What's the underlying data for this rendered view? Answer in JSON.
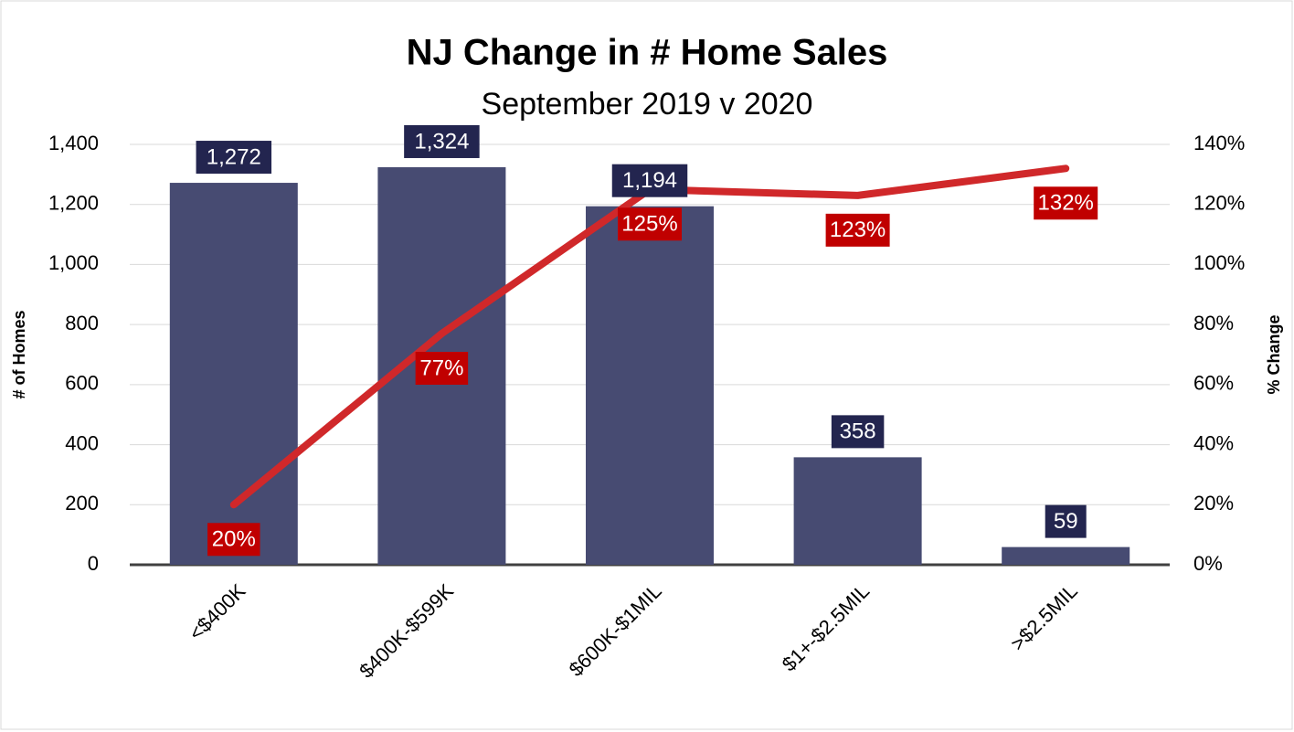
{
  "chart_data": {
    "type": "bar_line",
    "title": "NJ Change in # Home Sales",
    "subtitle": "September 2019 v 2020",
    "y_label": "# of Homes",
    "y2_label": "% Change",
    "categories": [
      "<$400K",
      "$400K-$599K",
      "$600K-$1MIL",
      "$1+-$2.5MIL",
      ">$2.5MIL"
    ],
    "series": [
      {
        "type": "bar",
        "color": "#474b72",
        "label_color": "#23254f",
        "values": [
          1272,
          1324,
          1194,
          358,
          59
        ],
        "value_labels": [
          "1,272",
          "1,324",
          "1,194",
          "358",
          "59"
        ]
      },
      {
        "type": "line",
        "axis": "y2",
        "color": "#d0282a",
        "label_color": "#c00000",
        "values": [
          20,
          77,
          125,
          123,
          132
        ],
        "value_labels": [
          "20%",
          "77%",
          "125%",
          "123%",
          "132%"
        ]
      }
    ],
    "ylim": [
      0,
      1400
    ],
    "yticks": [
      0,
      200,
      400,
      600,
      800,
      {
        "value": 1000,
        "label": "1,000"
      },
      {
        "value": 1200,
        "label": "1,200"
      },
      {
        "value": 1400,
        "label": "1,400"
      }
    ],
    "y2lim": [
      0,
      140
    ],
    "y2ticks": [
      {
        "value": 0,
        "label": "0%"
      },
      {
        "value": 20,
        "label": "20%"
      },
      {
        "value": 40,
        "label": "40%"
      },
      {
        "value": 60,
        "label": "60%"
      },
      {
        "value": 80,
        "label": "80%"
      },
      {
        "value": 100,
        "label": "100%"
      },
      {
        "value": 120,
        "label": "120%"
      },
      {
        "value": 140,
        "label": "140%"
      }
    ],
    "grid": true
  }
}
